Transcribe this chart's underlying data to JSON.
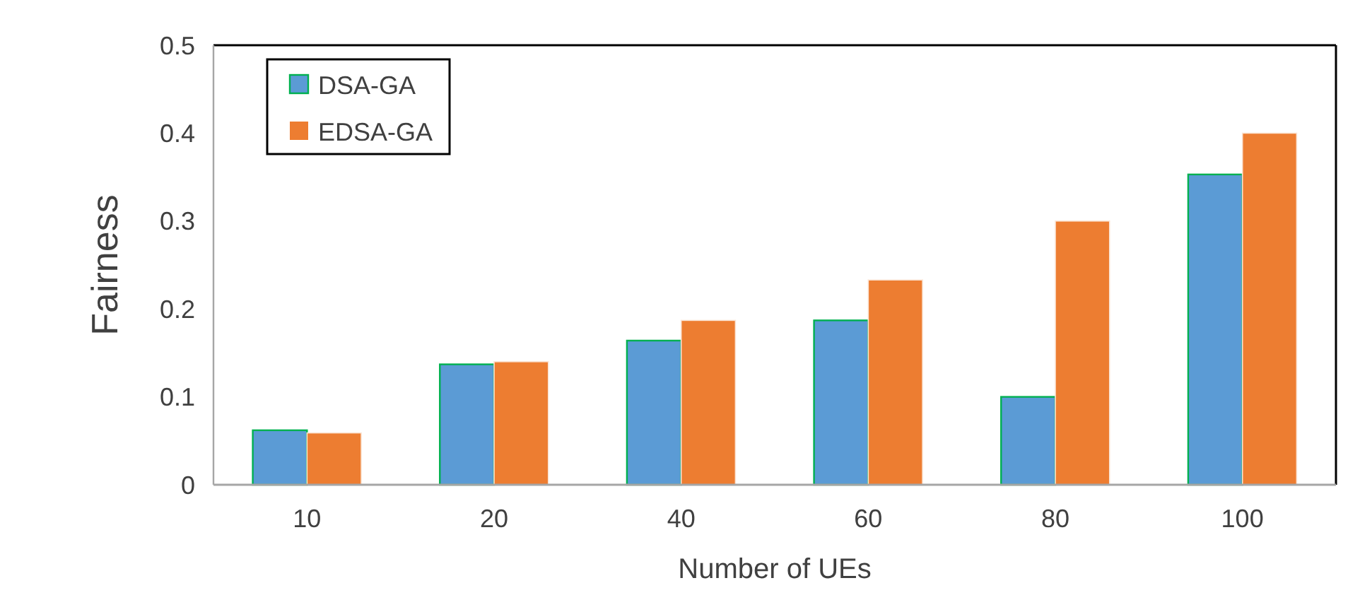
{
  "chart_data": {
    "type": "bar",
    "xlabel": "Number of UEs",
    "ylabel": "Fairness",
    "categories": [
      "10",
      "20",
      "40",
      "60",
      "80",
      "100"
    ],
    "series": [
      {
        "name": "DSA-GA",
        "color": "#5b9bd5",
        "values": [
          0.062,
          0.137,
          0.164,
          0.187,
          0.1,
          0.353
        ]
      },
      {
        "name": "EDSA-GA",
        "color": "#ed7d31",
        "values": [
          0.059,
          0.14,
          0.187,
          0.233,
          0.3,
          0.4
        ]
      }
    ],
    "ylim": [
      0,
      0.5
    ],
    "yticks": [
      0,
      0.1,
      0.2,
      0.3,
      0.4,
      0.5
    ],
    "grid": false,
    "legend": "top left"
  }
}
